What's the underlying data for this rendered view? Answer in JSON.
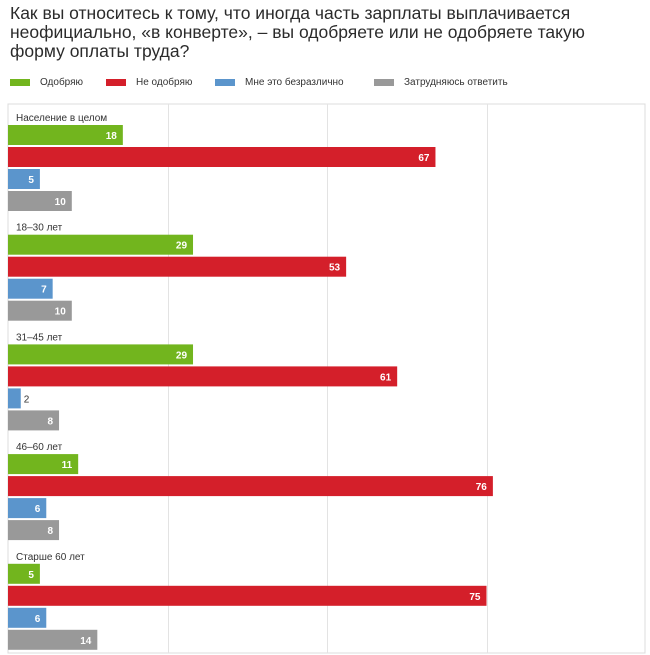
{
  "chart_data": {
    "type": "bar",
    "orientation": "horizontal",
    "title": "Как вы относитесь к тому, что иногда часть зарплаты выплачивается неофициально, «в конверте», – вы одобряете или не одобряете такую форму оплаты труда?",
    "categories": [
      "Население в целом",
      "18–30 лет",
      "31–45 лет",
      "46–60 лет",
      "Старше 60 лет"
    ],
    "series": [
      {
        "name": "Одобряю",
        "color": "#72b51e",
        "values": [
          18,
          29,
          29,
          11,
          5
        ]
      },
      {
        "name": "Не одобряю",
        "color": "#d41f2a",
        "values": [
          67,
          53,
          61,
          76,
          75
        ]
      },
      {
        "name": "Мне это безразлично",
        "color": "#5b95cc",
        "values": [
          5,
          7,
          2,
          6,
          6
        ]
      },
      {
        "name": "Затрудняюсь ответить",
        "color": "#999999",
        "values": [
          10,
          10,
          8,
          8,
          14
        ]
      }
    ],
    "xlim": [
      0,
      100
    ],
    "grid": true,
    "legend_position": "top-left",
    "data_labels": true
  }
}
